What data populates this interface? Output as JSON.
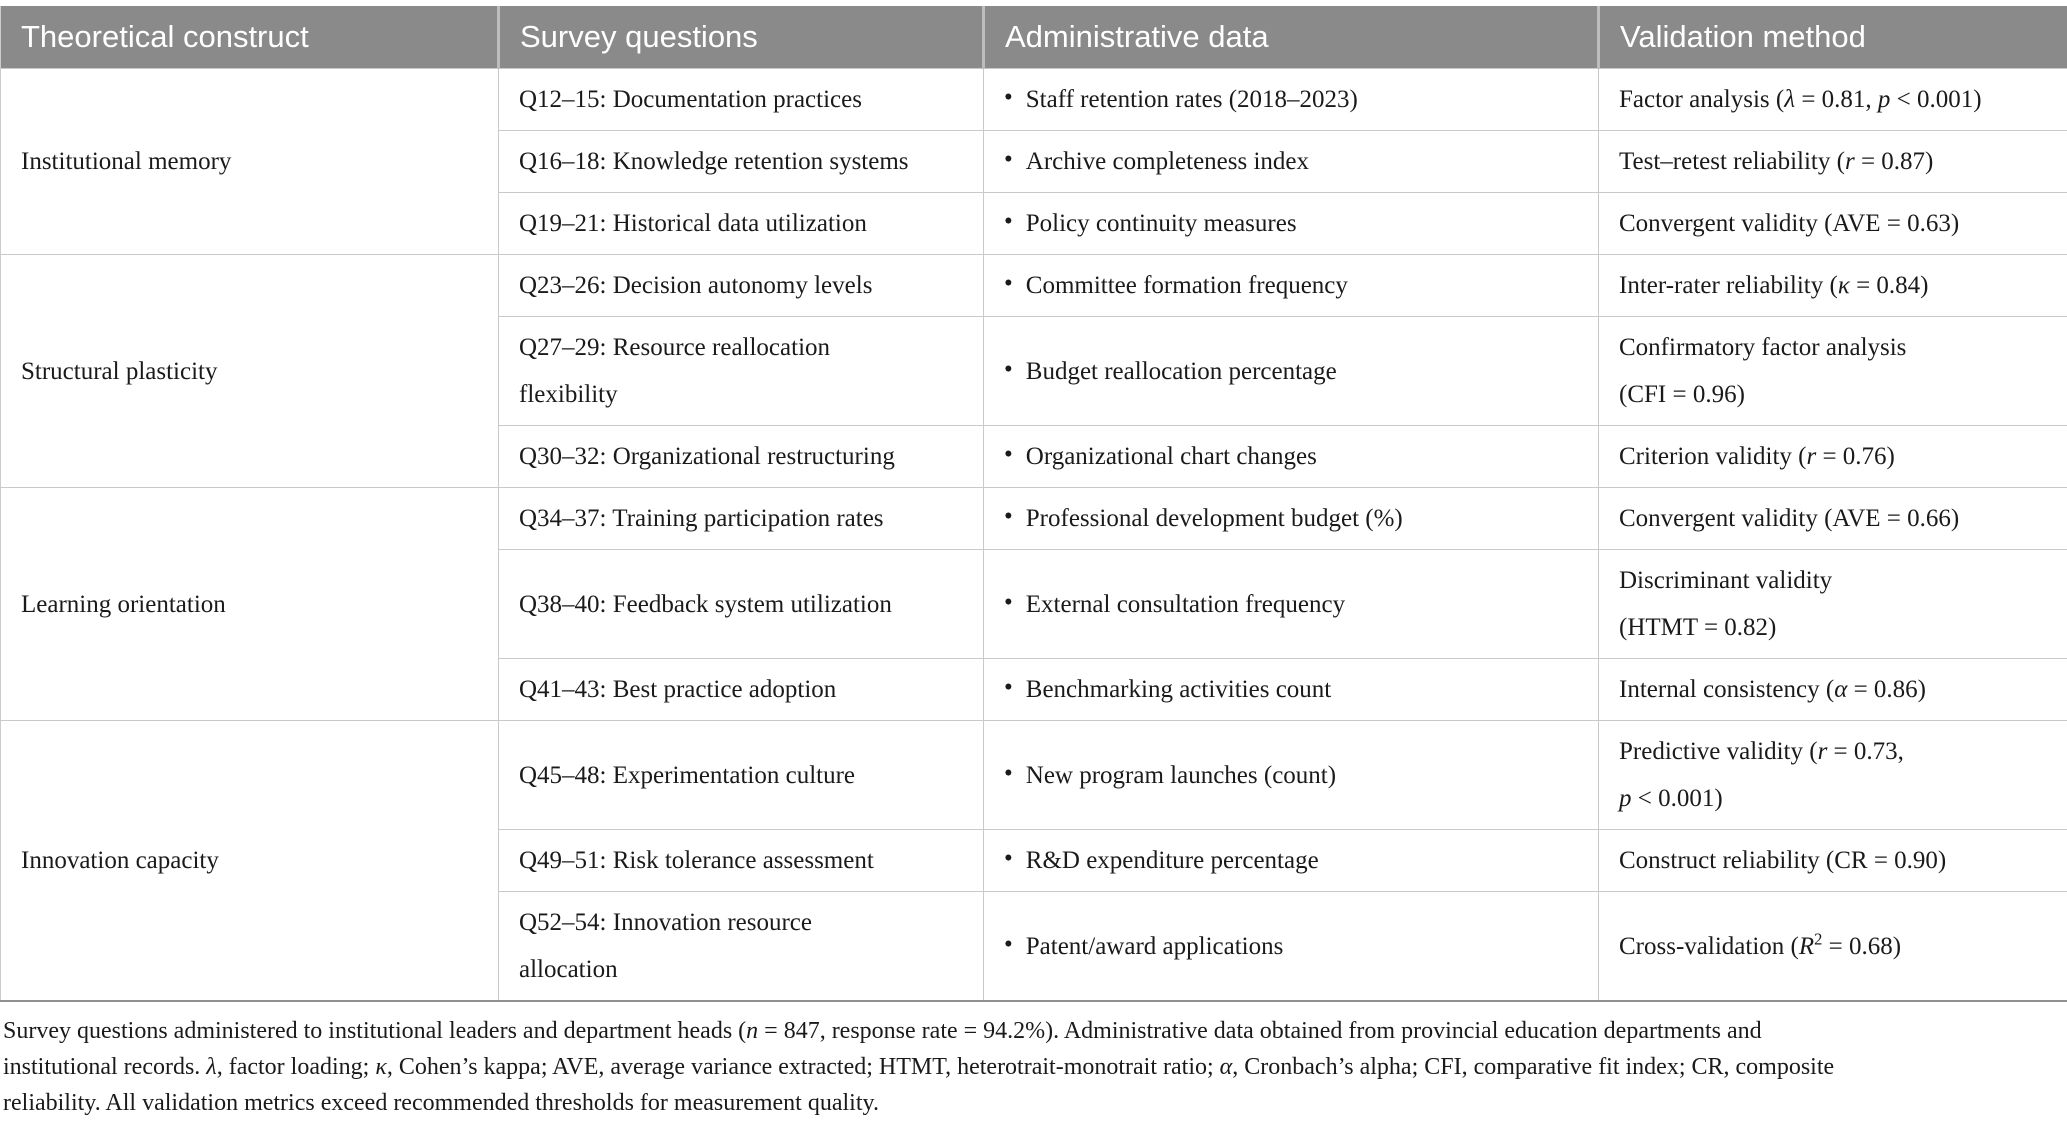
{
  "table": {
    "headers": [
      "Theoretical construct",
      "Survey questions",
      "Administrative data",
      "Validation method"
    ],
    "bullet": "•",
    "groups": [
      {
        "construct": "Institutional memory",
        "rows": [
          {
            "question": "Q12–15: Documentation practices",
            "admin": "Staff retention rates (2018–2023)",
            "validation": "Factor analysis (*λ* = 0.81, *p* < 0.001)"
          },
          {
            "question": "Q16–18: Knowledge retention systems",
            "admin": "Archive completeness index",
            "validation": "Test–retest reliability (*r* = 0.87)"
          },
          {
            "question": "Q19–21: Historical data utilization",
            "admin": "Policy continuity measures",
            "validation": "Convergent validity (AVE = 0.63)"
          }
        ]
      },
      {
        "construct": "Structural plasticity",
        "rows": [
          {
            "question": "Q23–26: Decision autonomy levels",
            "admin": "Committee formation frequency",
            "validation": "Inter-rater reliability (*κ* = 0.84)"
          },
          {
            "question": "Q27–29: Resource reallocation\nflexibility",
            "admin": "Budget reallocation percentage",
            "validation": "Confirmatory factor analysis\n(CFI = 0.96)"
          },
          {
            "question": "Q30–32: Organizational restructuring",
            "admin": "Organizational chart changes",
            "validation": "Criterion validity (*r* = 0.76)"
          }
        ]
      },
      {
        "construct": "Learning orientation",
        "rows": [
          {
            "question": "Q34–37: Training participation rates",
            "admin": "Professional development budget (%)",
            "validation": "Convergent validity (AVE = 0.66)"
          },
          {
            "question": "Q38–40: Feedback system utilization",
            "admin": "External consultation frequency",
            "validation": "Discriminant validity\n(HTMT = 0.82)"
          },
          {
            "question": "Q41–43: Best practice adoption",
            "admin": "Benchmarking activities count",
            "validation": "Internal consistency (*α* = 0.86)"
          }
        ]
      },
      {
        "construct": "Innovation capacity",
        "rows": [
          {
            "question": "Q45–48: Experimentation culture",
            "admin": "New program launches (count)",
            "validation": "Predictive validity (*r* = 0.73,\n*p* < 0.001)"
          },
          {
            "question": "Q49–51: Risk tolerance assessment",
            "admin": "R&D expenditure percentage",
            "validation": "Construct reliability (CR = 0.90)"
          },
          {
            "question": "Q52–54: Innovation resource\nallocation",
            "admin": "Patent/award applications",
            "validation": "Cross-validation (*R*^2^ = 0.68)"
          }
        ]
      }
    ]
  },
  "footnote": {
    "lines": [
      "Survey questions administered to institutional leaders and department heads (*n* = 847, response rate = 94.2%). Administrative data obtained from provincial education departments and",
      "institutional records. *λ*, factor loading; *κ*, Cohen’s kappa; AVE, average variance extracted; HTMT, heterotrait-monotrait ratio; *α*, Cronbach’s alpha; CFI, comparative fit index; CR, composite",
      "reliability. All validation metrics exceed recommended thresholds for measurement quality."
    ]
  }
}
